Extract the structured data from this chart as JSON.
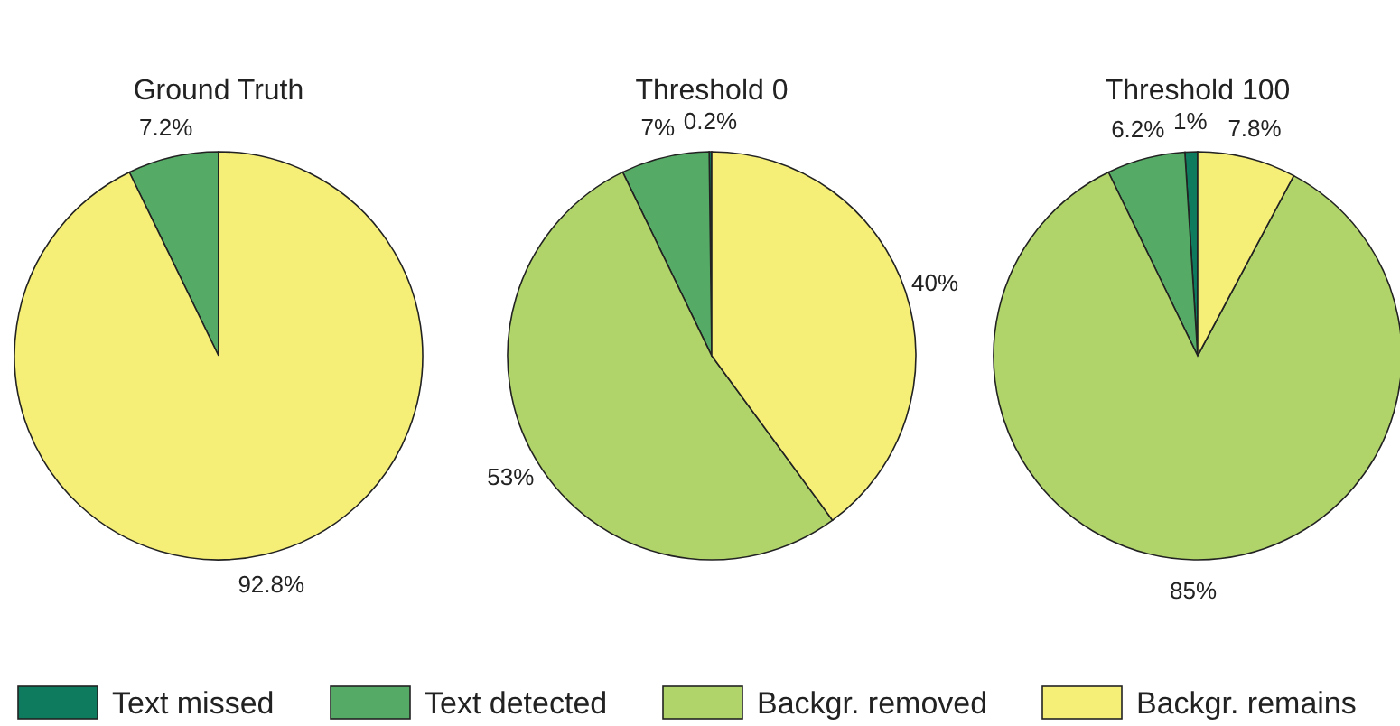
{
  "chart_data": [
    {
      "type": "pie",
      "title": "Ground Truth",
      "categories": [
        "Text missed",
        "Text detected",
        "Backgr. removed",
        "Backgr. remains"
      ],
      "values": [
        0,
        7.2,
        0,
        92.8
      ],
      "colors": [
        "#0e7a5e",
        "#55ab66",
        "#b0d46a",
        "#f5ef78"
      ],
      "value_labels": [
        null,
        "7.2%",
        null,
        "92.8%"
      ],
      "legend": "bottom"
    },
    {
      "type": "pie",
      "title": "Threshold 0",
      "categories": [
        null,
        null,
        null,
        null
      ],
      "values": [
        0.2,
        7,
        53,
        40
      ],
      "colors": [
        "#0e7a5e",
        "#55ab66",
        "#b0d46a",
        "#f5ef78"
      ],
      "value_labels": [
        "0.2%",
        "7%",
        "53%",
        "40%"
      ]
    },
    {
      "type": "pie",
      "title": "Threshold 100",
      "categories": [
        null,
        null,
        null,
        null
      ],
      "values": [
        1,
        6.2,
        85,
        7.8
      ],
      "colors": [
        "#0e7a5e",
        "#55ab66",
        "#b0d46a",
        "#f5ef78"
      ],
      "value_labels": [
        "1%",
        "6.2%",
        "85%",
        "7.8%"
      ]
    }
  ]
}
